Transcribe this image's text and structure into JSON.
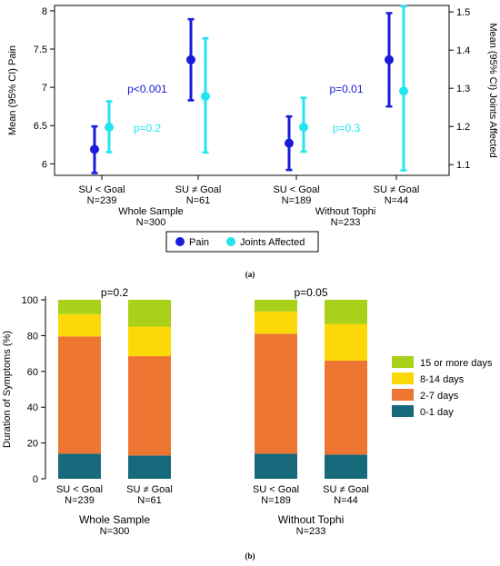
{
  "panel_a": {
    "caption": "(a)",
    "legend": [
      {
        "label": "Pain",
        "color": "#1a1adb"
      },
      {
        "label": "Joints Affected",
        "color": "#22e5f0"
      }
    ]
  },
  "panel_b": {
    "caption": "(b)"
  },
  "chart_data": [
    {
      "type": "errorbar",
      "ylabel": "Mean (95% CI) Pain",
      "y2label": "Mean (95% CI) Joints Affected",
      "ylim": [
        5.85,
        8.07
      ],
      "y2lim": [
        1.072,
        1.517
      ],
      "yticks": [
        "6",
        "6.5",
        "7",
        "7.5",
        "8"
      ],
      "y2ticks": [
        "1.1",
        "1.2",
        "1.3",
        "1.4",
        "1.5"
      ],
      "categories": [
        {
          "label": "SU < Goal",
          "n": "N=239"
        },
        {
          "label": "SU ≠ Goal",
          "n": "N=61"
        },
        {
          "label": "SU < Goal",
          "n": "N=189"
        },
        {
          "label": "SU ≠ Goal",
          "n": "N=44"
        }
      ],
      "groups": [
        {
          "label": "Whole Sample",
          "n": "N=300"
        },
        {
          "label": "Without Tophi",
          "n": "N=233"
        }
      ],
      "series": [
        {
          "name": "Pain",
          "axis": "left",
          "color": "#1a1adb",
          "mean": [
            6.19,
            7.36,
            6.27,
            7.36
          ],
          "lower": [
            5.88,
            6.83,
            5.92,
            6.75
          ],
          "upper": [
            6.49,
            7.89,
            6.62,
            7.97
          ]
        },
        {
          "name": "Joints Affected",
          "axis": "right",
          "color": "#22e5f0",
          "mean": [
            1.198,
            1.279,
            1.198,
            1.293
          ],
          "lower": [
            1.133,
            1.132,
            1.134,
            1.085
          ],
          "upper": [
            1.266,
            1.431,
            1.275,
            1.515
          ]
        }
      ],
      "annotations": [
        {
          "text": "p<0.001",
          "group": 0,
          "color": "#1a1adb",
          "value": 6.98
        },
        {
          "text": "p=0.2",
          "group": 0,
          "color": "#22e5f0",
          "value": 6.47
        },
        {
          "text": "p=0.01",
          "group": 1,
          "color": "#1a1adb",
          "value": 6.98
        },
        {
          "text": "p=0.3",
          "group": 1,
          "color": "#22e5f0",
          "value": 6.47
        }
      ]
    },
    {
      "type": "bar",
      "stacked": true,
      "ylabel": "Duration of Symptoms (%)",
      "ylim": [
        0,
        100
      ],
      "yticks": [
        "0",
        "20",
        "40",
        "60",
        "80",
        "100"
      ],
      "categories": [
        {
          "label": "SU < Goal",
          "n": "N=239"
        },
        {
          "label": "SU ≠ Goal",
          "n": "N=61"
        },
        {
          "label": "SU < Goal",
          "n": "N=189"
        },
        {
          "label": "SU ≠ Goal",
          "n": "N=44"
        }
      ],
      "groups": [
        {
          "label": "Whole Sample",
          "n": "N=300"
        },
        {
          "label": "Without Tophi",
          "n": "N=233"
        }
      ],
      "series": [
        {
          "name": "0-1 day",
          "color": "#176a7c",
          "values": [
            14,
            13,
            14,
            13.5
          ]
        },
        {
          "name": "2-7 days",
          "color": "#ec7631",
          "values": [
            65.5,
            55.5,
            67,
            52.5
          ]
        },
        {
          "name": "8-14 days",
          "color": "#fdd808",
          "values": [
            12.5,
            16.5,
            12.5,
            20.5
          ]
        },
        {
          "name": "15 or more days",
          "color": "#a9d11a",
          "values": [
            8,
            15,
            6.5,
            13.5
          ]
        }
      ],
      "legend_order": [
        3,
        2,
        1,
        0
      ],
      "annotations": [
        {
          "text": "p=0.2",
          "group": 0
        },
        {
          "text": "p=0.05",
          "group": 1
        }
      ]
    }
  ]
}
